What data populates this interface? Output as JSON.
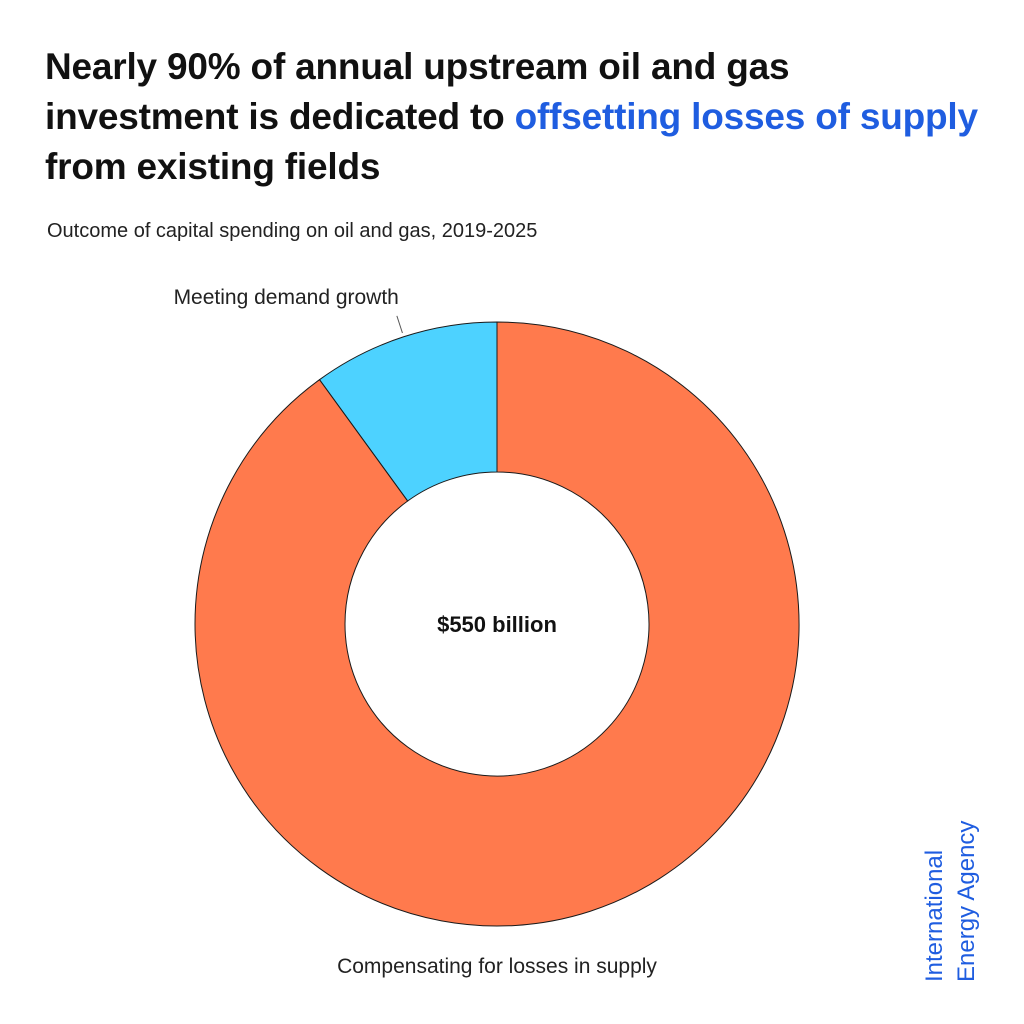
{
  "headline": {
    "part1": "Nearly 90% of annual upstream oil and gas investment is dedicated to ",
    "highlight": "offsetting losses of supply",
    "part2": " from existing fields"
  },
  "colors": {
    "highlight": "#1f5de0",
    "compensating": "#ff7a4d",
    "demand": "#4dd2ff",
    "logo": "#1f5de0"
  },
  "chart_data": {
    "type": "pie",
    "style": "donut",
    "title": "Nearly 90% of annual upstream oil and gas investment is dedicated to offsetting losses of supply from existing fields",
    "subtitle": "Outcome of capital spending on oil and gas, 2019-2025",
    "center_label": "$550 billion",
    "total": 550,
    "unit": "billion USD",
    "slices": [
      {
        "name": "Meeting demand growth",
        "share": 10,
        "color": "#4dd2ff"
      },
      {
        "name": "Compensating for losses in supply",
        "share": 90,
        "color": "#ff7a4d"
      }
    ],
    "legend": "none"
  },
  "logo": {
    "line1": "International",
    "line2": "Energy Agency"
  }
}
